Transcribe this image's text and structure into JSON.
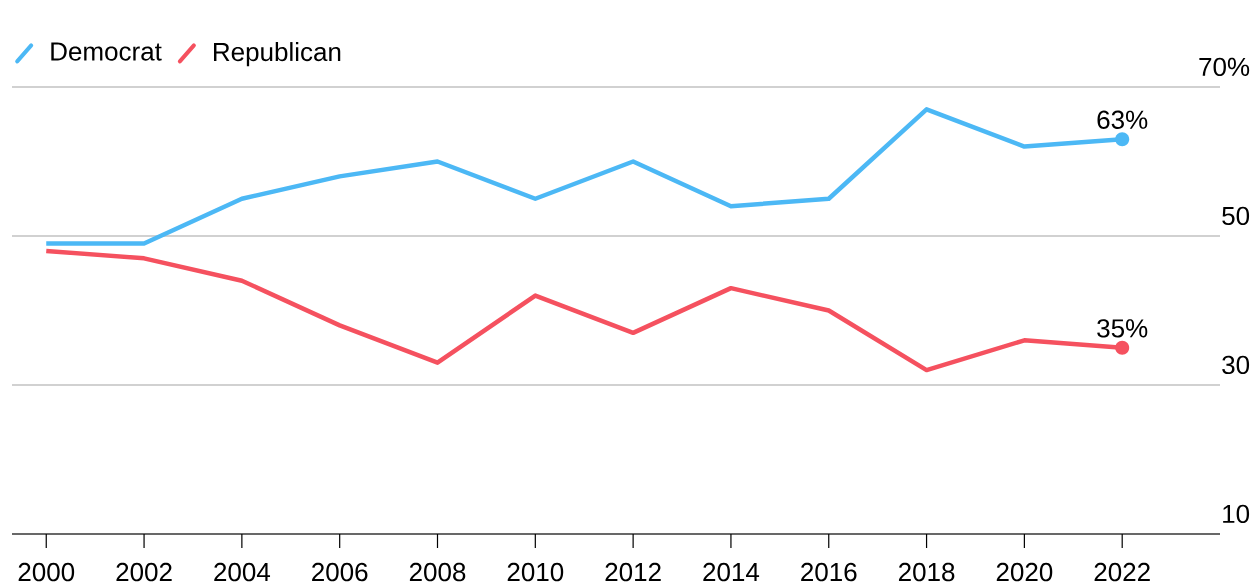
{
  "chart_data": {
    "type": "line",
    "x": [
      2000,
      2002,
      2004,
      2006,
      2008,
      2010,
      2012,
      2014,
      2016,
      2018,
      2020,
      2022
    ],
    "series": [
      {
        "name": "Democrat",
        "color": "#4cb8f5",
        "values": [
          49,
          49,
          55,
          58,
          60,
          55,
          60,
          54,
          55,
          67,
          62,
          63
        ],
        "value_labels": [
          null,
          null,
          null,
          null,
          null,
          null,
          null,
          null,
          null,
          null,
          null,
          "63%"
        ]
      },
      {
        "name": "Republican",
        "color": "#f5515f",
        "values": [
          48,
          47,
          44,
          38,
          33,
          42,
          37,
          43,
          40,
          32,
          36,
          35
        ],
        "value_labels": [
          null,
          null,
          null,
          null,
          null,
          null,
          null,
          null,
          null,
          null,
          null,
          "35%"
        ]
      }
    ],
    "xlim": [
      1999.3,
      2024
    ],
    "ylim": [
      10,
      70
    ],
    "xticks": [
      2000,
      2002,
      2004,
      2006,
      2008,
      2010,
      2012,
      2014,
      2016,
      2018,
      2020,
      2022
    ],
    "yticks": [
      10,
      30,
      50,
      {
        "value": 70,
        "label": "70%"
      }
    ],
    "grid": "y",
    "legend": "top left",
    "line_style": "solid"
  }
}
